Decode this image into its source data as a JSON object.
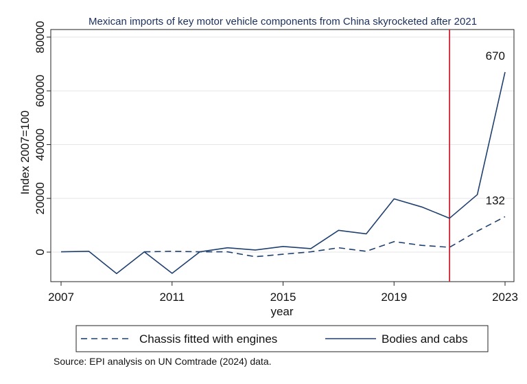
{
  "chart_data": {
    "type": "line",
    "title": "Mexican imports of key motor vehicle components from China skyrocketed after 2021",
    "xlabel": "year",
    "ylabel": "Index 2007=100",
    "xlim": [
      2007,
      2023
    ],
    "ylim": [
      -10000,
      80000
    ],
    "x_ticks": [
      "2007",
      "2011",
      "2015",
      "2019",
      "2023"
    ],
    "x_tick_values": [
      2007,
      2011,
      2015,
      2019,
      2023
    ],
    "y_ticks": [
      "0",
      "20000",
      "40000",
      "60000",
      "80000"
    ],
    "y_tick_values": [
      0,
      20000,
      40000,
      60000,
      80000
    ],
    "grid": true,
    "reference_line": {
      "x": 2021,
      "color": "#d0202f"
    },
    "series": [
      {
        "name": "Chassis fitted with engines",
        "style": "dashed",
        "color": "#1f3f6e",
        "x": [
          2010,
          2011,
          2012,
          2013,
          2014,
          2015,
          2016,
          2017,
          2018,
          2019,
          2020,
          2021,
          2022,
          2023
        ],
        "values": [
          100,
          300,
          100,
          100,
          -1700,
          -800,
          100,
          1600,
          300,
          3900,
          2500,
          1800,
          7800,
          13200
        ],
        "end_label": "132"
      },
      {
        "name": "Bodies and cabs",
        "style": "solid",
        "color": "#1f3f6e",
        "x": [
          2007,
          2008,
          2009,
          2010,
          2011,
          2012,
          2013,
          2014,
          2015,
          2016,
          2017,
          2018,
          2019,
          2020,
          2021,
          2022,
          2023
        ],
        "values": [
          100,
          300,
          -8000,
          100,
          -7900,
          100,
          1600,
          800,
          2100,
          1300,
          8100,
          6800,
          19800,
          16800,
          12600,
          21400,
          67000
        ],
        "end_label": "670"
      }
    ],
    "legend_position": "bottom",
    "source": "Source: EPI analysis on UN Comtrade (2024) data."
  }
}
